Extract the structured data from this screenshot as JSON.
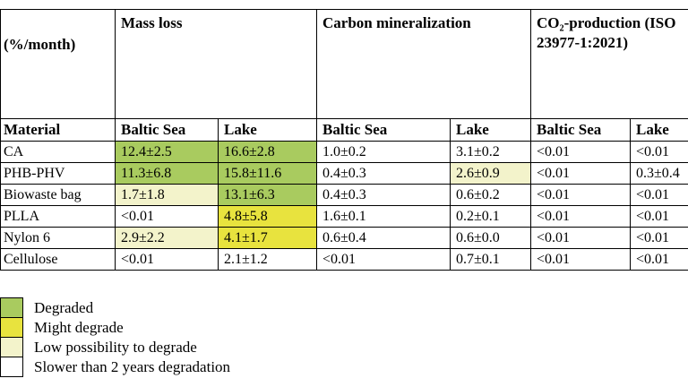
{
  "chart_data": {
    "type": "table",
    "unit_label": "(%/month)",
    "group_headers": [
      {
        "label": "Mass loss",
        "span": 2
      },
      {
        "label": "Carbon mineralization",
        "span": 2
      },
      {
        "label": "CO₂-production (ISO 23977-1:2021)",
        "span": 2
      }
    ],
    "sub_headers": [
      "Material",
      "Baltic Sea",
      "Lake",
      "Baltic Sea",
      "Lake",
      "Baltic Sea",
      "Lake"
    ],
    "rows": [
      {
        "material": "CA",
        "values": [
          "12.4±2.5",
          "16.6±2.8",
          "1.0±0.2",
          "3.1±0.2",
          "<0.01",
          "<0.01"
        ],
        "statuses": [
          "degraded",
          "degraded",
          "none",
          "none",
          "none",
          "none"
        ]
      },
      {
        "material": "PHB-PHV",
        "values": [
          "11.3±6.8",
          "15.8±11.6",
          "0.4±0.3",
          "2.6±0.9",
          "<0.01",
          "0.3±0.4"
        ],
        "statuses": [
          "degraded",
          "degraded",
          "none",
          "low",
          "none",
          "none"
        ]
      },
      {
        "material": "Biowaste bag",
        "values": [
          "1.7±1.8",
          "13.1±6.3",
          "0.4±0.3",
          "0.6±0.2",
          "<0.01",
          "<0.01"
        ],
        "statuses": [
          "low",
          "degraded",
          "none",
          "none",
          "none",
          "none"
        ]
      },
      {
        "material": "PLLA",
        "values": [
          "<0.01",
          "4.8±5.8",
          "1.6±0.1",
          "0.2±0.1",
          "<0.01",
          "<0.01"
        ],
        "statuses": [
          "none",
          "might",
          "none",
          "none",
          "none",
          "none"
        ]
      },
      {
        "material": "Nylon 6",
        "values": [
          "2.9±2.2",
          "4.1±1.7",
          "0.6±0.4",
          "0.6±0.0",
          "<0.01",
          "<0.01"
        ],
        "statuses": [
          "low",
          "might",
          "none",
          "none",
          "none",
          "none"
        ]
      },
      {
        "material": "Cellulose",
        "values": [
          "<0.01",
          "2.1±1.2",
          "<0.01",
          "0.7±0.1",
          "<0.01",
          "<0.01"
        ],
        "statuses": [
          "none",
          "none",
          "none",
          "none",
          "none",
          "none"
        ]
      }
    ]
  },
  "legend": {
    "items": [
      {
        "label": "Degraded",
        "status": "degraded"
      },
      {
        "label": "Might degrade",
        "status": "might"
      },
      {
        "label": "Low possibility to degrade",
        "status": "low"
      },
      {
        "label": "Slower than 2 years degradation",
        "status": "none"
      }
    ]
  },
  "colors": {
    "degraded": "#A9CB5F",
    "might": "#E8E33E",
    "low": "#F3F3CB",
    "none": "#FFFFFF",
    "border": "#000000"
  }
}
